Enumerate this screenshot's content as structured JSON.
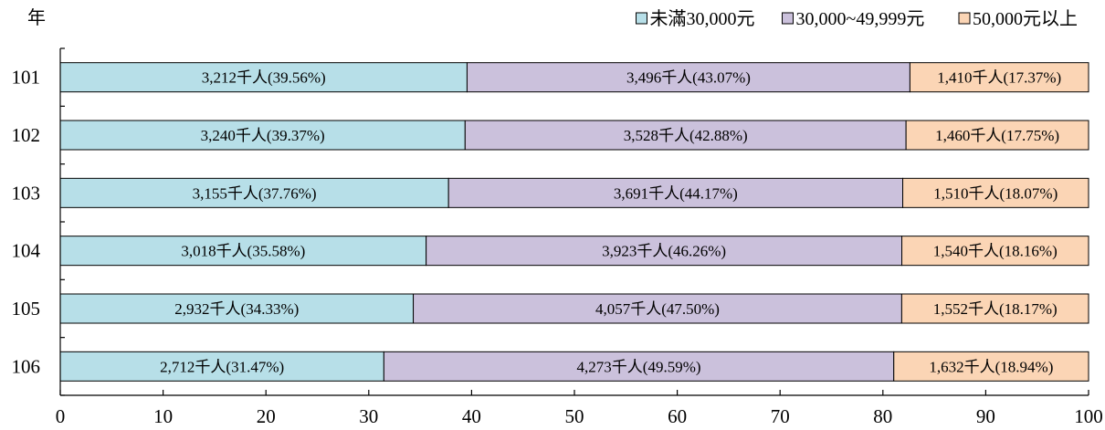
{
  "chart_data": {
    "type": "bar",
    "orientation": "horizontal",
    "stacked": true,
    "y_axis_title": "年",
    "x_unit": "%",
    "xlim": [
      0,
      100
    ],
    "x_ticks": [
      "0",
      "10",
      "20",
      "30",
      "40",
      "50",
      "60",
      "70",
      "80",
      "90",
      "100"
    ],
    "categories": [
      "101",
      "102",
      "103",
      "104",
      "105",
      "106"
    ],
    "legend_position": "top-right",
    "grid": false,
    "series": [
      {
        "name": "未滿30,000元",
        "color": "#b7dfe8",
        "values": [
          39.56,
          39.37,
          37.76,
          35.58,
          34.33,
          31.47
        ],
        "labels": [
          "3,212千人(39.56%)",
          "3,240千人(39.37%)",
          "3,155千人(37.76%)",
          "3,018千人(35.58%)",
          "2,932千人(34.33%)",
          "2,712千人(31.47%)"
        ]
      },
      {
        "name": "30,000~49,999元",
        "color": "#cbc1dc",
        "values": [
          43.07,
          42.88,
          44.17,
          46.26,
          47.5,
          49.59
        ],
        "labels": [
          "3,496千人(43.07%)",
          "3,528千人(42.88%)",
          "3,691千人(44.17%)",
          "3,923千人(46.26%)",
          "4,057千人(47.50%)",
          "4,273千人(49.59%)"
        ]
      },
      {
        "name": "50,000元以上",
        "color": "#fbd5b5",
        "values": [
          17.37,
          17.75,
          18.07,
          18.16,
          18.17,
          18.94
        ],
        "labels": [
          "1,410千人(17.37%)",
          "1,460千人(17.75%)",
          "1,510千人(18.07%)",
          "1,540千人(18.16%)",
          "1,552千人(18.17%)",
          "1,632千人(18.94%)"
        ]
      }
    ]
  }
}
